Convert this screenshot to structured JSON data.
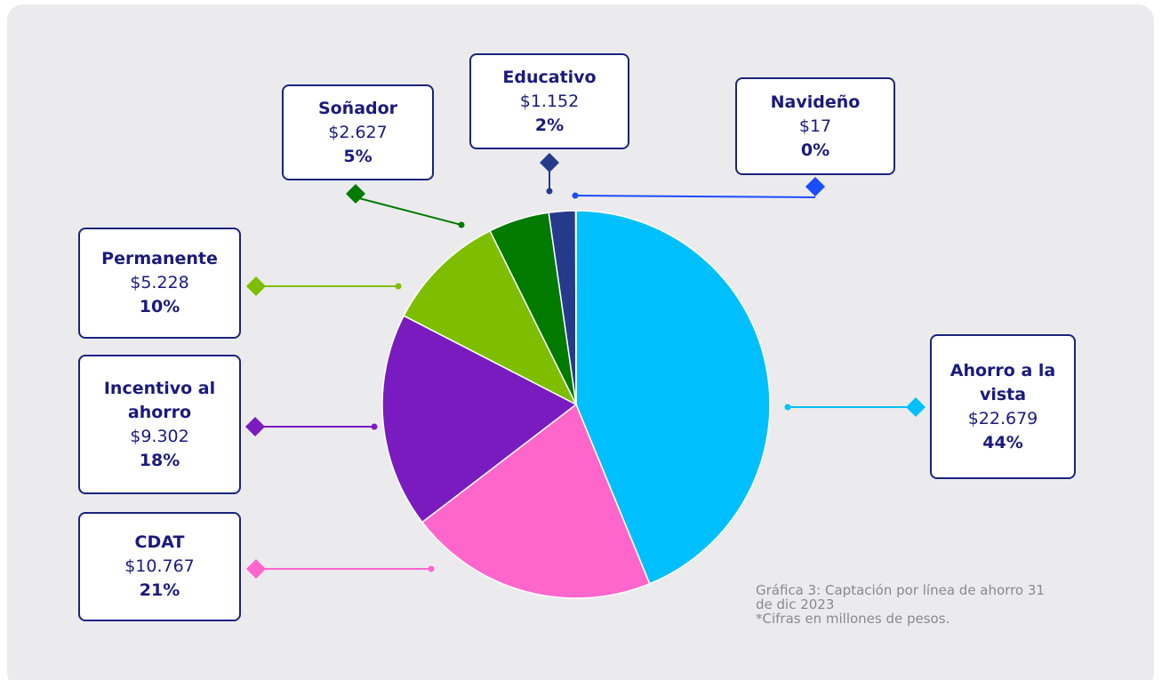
{
  "chart_data": {
    "type": "pie",
    "categories": [
      "Ahorro a la vista",
      "CDAT",
      "Incentivo al ahorro",
      "Permanente",
      "Soñador",
      "Educativo",
      "Navideño"
    ],
    "values": [
      22679,
      10767,
      9302,
      5228,
      2627,
      1152,
      17
    ],
    "value_labels": [
      "$22.679",
      "$10.767",
      "$9.302",
      "$5.228",
      "$2.627",
      "$1.152",
      "$17"
    ],
    "percents": [
      44,
      21,
      18,
      10,
      5,
      2,
      0
    ],
    "percent_labels": [
      "44%",
      "21%",
      "18%",
      "10%",
      "5%",
      "2%",
      "0%"
    ],
    "colors": [
      "#00bfff",
      "#ff66cc",
      "#7a1bbf",
      "#7dbf00",
      "#007a00",
      "#253a8a",
      "#1a4cff"
    ],
    "notes": [
      "Gráfica 3: Captación por línea de ahorro 31 de dic 2023",
      "*Cifras en millones de pesos."
    ]
  }
}
